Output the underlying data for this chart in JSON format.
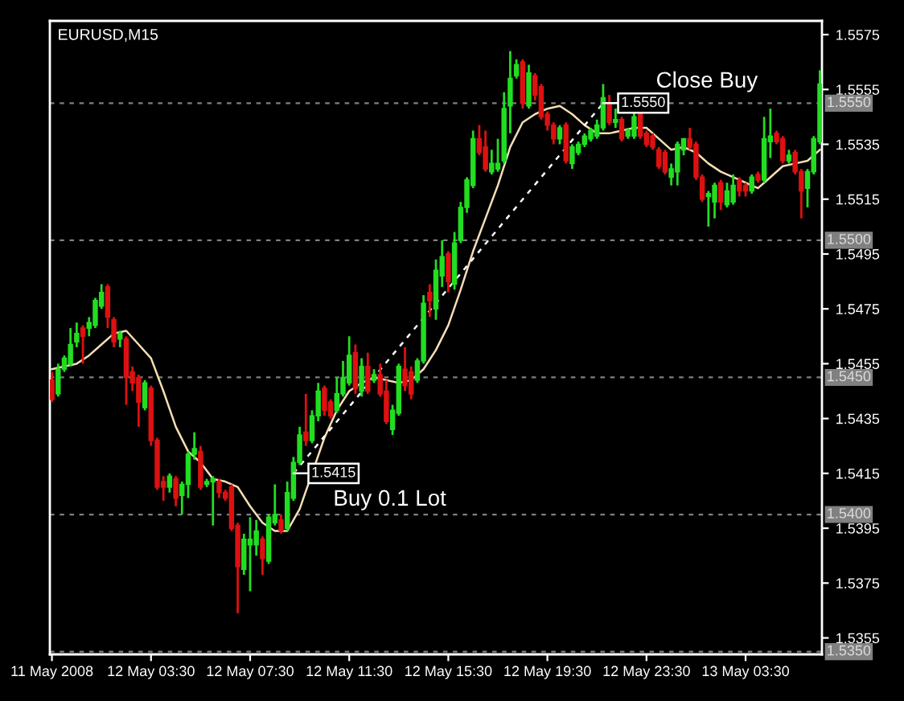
{
  "chart_data": {
    "type": "candlestick",
    "title": "EURUSD,M15",
    "x": [
      "2008-05-11T23:30",
      "2008-05-11T23:45",
      "2008-05-12T00:00",
      "2008-05-12T00:15",
      "2008-05-12T00:30",
      "2008-05-12T00:45",
      "2008-05-12T01:00",
      "2008-05-12T01:15",
      "2008-05-12T01:30",
      "2008-05-12T01:45",
      "2008-05-12T02:00",
      "2008-05-12T02:15",
      "2008-05-12T02:30",
      "2008-05-12T02:45",
      "2008-05-12T03:00",
      "2008-05-12T03:15",
      "2008-05-12T03:30",
      "2008-05-12T03:45",
      "2008-05-12T04:00",
      "2008-05-12T04:15",
      "2008-05-12T04:30",
      "2008-05-12T04:45",
      "2008-05-12T05:00",
      "2008-05-12T05:15",
      "2008-05-12T05:30",
      "2008-05-12T05:45",
      "2008-05-12T06:00",
      "2008-05-12T06:15",
      "2008-05-12T06:30",
      "2008-05-12T06:45",
      "2008-05-12T07:00",
      "2008-05-12T07:15",
      "2008-05-12T07:30",
      "2008-05-12T07:45",
      "2008-05-12T08:00",
      "2008-05-12T08:15",
      "2008-05-12T08:30",
      "2008-05-12T08:45",
      "2008-05-12T09:00",
      "2008-05-12T09:15",
      "2008-05-12T09:30",
      "2008-05-12T09:45",
      "2008-05-12T10:00",
      "2008-05-12T10:15",
      "2008-05-12T10:30",
      "2008-05-12T10:45",
      "2008-05-12T11:00",
      "2008-05-12T11:15",
      "2008-05-12T11:30",
      "2008-05-12T11:45",
      "2008-05-12T12:00",
      "2008-05-12T12:15",
      "2008-05-12T12:30",
      "2008-05-12T12:45",
      "2008-05-12T13:00",
      "2008-05-12T13:15",
      "2008-05-12T13:30",
      "2008-05-12T13:45",
      "2008-05-12T14:00",
      "2008-05-12T14:15",
      "2008-05-12T14:30",
      "2008-05-12T14:45",
      "2008-05-12T15:00",
      "2008-05-12T15:15",
      "2008-05-12T15:30",
      "2008-05-12T15:45",
      "2008-05-12T16:00",
      "2008-05-12T16:15",
      "2008-05-12T16:30",
      "2008-05-12T16:45",
      "2008-05-12T17:00",
      "2008-05-12T17:15",
      "2008-05-12T17:30",
      "2008-05-12T17:45",
      "2008-05-12T18:00",
      "2008-05-12T18:15",
      "2008-05-12T18:30",
      "2008-05-12T18:45",
      "2008-05-12T19:00",
      "2008-05-12T19:15",
      "2008-05-12T19:30",
      "2008-05-12T19:45",
      "2008-05-12T20:00",
      "2008-05-12T20:15",
      "2008-05-12T20:30",
      "2008-05-12T20:45",
      "2008-05-12T21:00",
      "2008-05-12T21:15",
      "2008-05-12T21:30",
      "2008-05-12T21:45",
      "2008-05-12T22:00",
      "2008-05-12T22:15",
      "2008-05-12T22:30",
      "2008-05-12T22:45",
      "2008-05-12T23:00",
      "2008-05-12T23:15",
      "2008-05-12T23:30",
      "2008-05-12T23:45",
      "2008-05-13T00:00",
      "2008-05-13T00:15",
      "2008-05-13T00:30",
      "2008-05-13T00:45",
      "2008-05-13T01:00",
      "2008-05-13T01:15",
      "2008-05-13T01:30",
      "2008-05-13T01:45",
      "2008-05-13T02:00",
      "2008-05-13T02:15",
      "2008-05-13T02:30",
      "2008-05-13T02:45",
      "2008-05-13T03:00",
      "2008-05-13T03:15",
      "2008-05-13T03:30",
      "2008-05-13T03:45",
      "2008-05-13T04:00",
      "2008-05-13T04:15",
      "2008-05-13T04:30",
      "2008-05-13T04:45",
      "2008-05-13T05:00",
      "2008-05-13T05:15",
      "2008-05-13T05:30",
      "2008-05-13T05:45",
      "2008-05-13T06:00",
      "2008-05-13T06:15",
      "2008-05-13T06:30"
    ],
    "ohlc": [
      [
        1.5449,
        1.5452,
        1.5441,
        1.5442
      ],
      [
        1.5444,
        1.5455,
        1.5443,
        1.5453
      ],
      [
        1.5453,
        1.5458,
        1.5452,
        1.5457
      ],
      [
        1.5455,
        1.5468,
        1.5454,
        1.5462
      ],
      [
        1.5463,
        1.547,
        1.5461,
        1.5466
      ],
      [
        1.5468,
        1.5469,
        1.5455,
        1.5465
      ],
      [
        1.5468,
        1.5472,
        1.5465,
        1.547
      ],
      [
        1.5469,
        1.5479,
        1.5468,
        1.5478
      ],
      [
        1.5476,
        1.5484,
        1.5475,
        1.5481
      ],
      [
        1.5483,
        1.5484,
        1.5468,
        1.5472
      ],
      [
        1.5471,
        1.5472,
        1.5461,
        1.5463
      ],
      [
        1.5464,
        1.5467,
        1.5461,
        1.5466
      ],
      [
        1.5464,
        1.5465,
        1.544,
        1.545
      ],
      [
        1.5452,
        1.5454,
        1.5445,
        1.5448
      ],
      [
        1.545,
        1.5451,
        1.5432,
        1.5441
      ],
      [
        1.5439,
        1.5449,
        1.5438,
        1.5448
      ],
      [
        1.5446,
        1.5447,
        1.5425,
        1.5427
      ],
      [
        1.5427,
        1.5428,
        1.5409,
        1.541
      ],
      [
        1.5412,
        1.5414,
        1.5405,
        1.541
      ],
      [
        1.541,
        1.5415,
        1.5408,
        1.5414
      ],
      [
        1.5413,
        1.5414,
        1.5403,
        1.5406
      ],
      [
        1.5407,
        1.5412,
        1.54,
        1.5411
      ],
      [
        1.5411,
        1.5423,
        1.5406,
        1.5422
      ],
      [
        1.5422,
        1.543,
        1.542,
        1.5424
      ],
      [
        1.5423,
        1.5425,
        1.5409,
        1.541
      ],
      [
        1.5411,
        1.5413,
        1.541,
        1.5412
      ],
      [
        1.5412,
        1.5414,
        1.5396,
        1.5413
      ],
      [
        1.5412,
        1.5413,
        1.5406,
        1.5408
      ],
      [
        1.5408,
        1.5409,
        1.5405,
        1.5406
      ],
      [
        1.541,
        1.5411,
        1.5394,
        1.5395
      ],
      [
        1.5396,
        1.5397,
        1.5364,
        1.5381
      ],
      [
        1.538,
        1.5393,
        1.5378,
        1.5391
      ],
      [
        1.5389,
        1.5399,
        1.5372,
        1.5391
      ],
      [
        1.5389,
        1.5398,
        1.5385,
        1.5394
      ],
      [
        1.5391,
        1.5392,
        1.5378,
        1.5384
      ],
      [
        1.5383,
        1.54,
        1.5382,
        1.5399
      ],
      [
        1.5397,
        1.5411,
        1.5396,
        1.54
      ],
      [
        1.5398,
        1.54,
        1.5393,
        1.5394
      ],
      [
        1.5395,
        1.5412,
        1.5394,
        1.5408
      ],
      [
        1.5406,
        1.5421,
        1.5405,
        1.5419
      ],
      [
        1.5419,
        1.5432,
        1.5418,
        1.5429
      ],
      [
        1.543,
        1.5444,
        1.5425,
        1.5427
      ],
      [
        1.5427,
        1.5438,
        1.5426,
        1.5436
      ],
      [
        1.5436,
        1.5448,
        1.5434,
        1.5445
      ],
      [
        1.5446,
        1.5447,
        1.5436,
        1.5438
      ],
      [
        1.5441,
        1.5442,
        1.5435,
        1.5436
      ],
      [
        1.5438,
        1.545,
        1.5437,
        1.5444
      ],
      [
        1.5444,
        1.5456,
        1.5443,
        1.545
      ],
      [
        1.5448,
        1.5465,
        1.5447,
        1.5458
      ],
      [
        1.5459,
        1.5462,
        1.5444,
        1.5446
      ],
      [
        1.5445,
        1.5457,
        1.5443,
        1.5454
      ],
      [
        1.5454,
        1.5459,
        1.5444,
        1.5445
      ],
      [
        1.5449,
        1.5453,
        1.5448,
        1.5451
      ],
      [
        1.5451,
        1.5455,
        1.5443,
        1.5444
      ],
      [
        1.5445,
        1.5449,
        1.5433,
        1.5434
      ],
      [
        1.5431,
        1.544,
        1.5429,
        1.5438
      ],
      [
        1.5437,
        1.5455,
        1.5436,
        1.5454
      ],
      [
        1.5453,
        1.5461,
        1.5445,
        1.5447
      ],
      [
        1.5452,
        1.5454,
        1.5442,
        1.5444
      ],
      [
        1.5449,
        1.5457,
        1.5448,
        1.5456
      ],
      [
        1.5456,
        1.548,
        1.5455,
        1.5477
      ],
      [
        1.5481,
        1.5484,
        1.5472,
        1.5478
      ],
      [
        1.5475,
        1.5493,
        1.5471,
        1.5489
      ],
      [
        1.5487,
        1.55,
        1.5483,
        1.5494
      ],
      [
        1.5495,
        1.5496,
        1.5481,
        1.5485
      ],
      [
        1.5484,
        1.5503,
        1.5482,
        1.5499
      ],
      [
        1.55,
        1.5514,
        1.5499,
        1.5512
      ],
      [
        1.5512,
        1.5523,
        1.551,
        1.5522
      ],
      [
        1.552,
        1.554,
        1.5519,
        1.5537
      ],
      [
        1.5537,
        1.5542,
        1.5531,
        1.5532
      ],
      [
        1.5534,
        1.554,
        1.5525,
        1.5526
      ],
      [
        1.5525,
        1.5533,
        1.5524,
        1.5528
      ],
      [
        1.5526,
        1.5537,
        1.5525,
        1.5528
      ],
      [
        1.5529,
        1.5554,
        1.5528,
        1.5548
      ],
      [
        1.5549,
        1.5569,
        1.5539,
        1.5559
      ],
      [
        1.556,
        1.5566,
        1.5559,
        1.5564
      ],
      [
        1.5565,
        1.5566,
        1.5548,
        1.555
      ],
      [
        1.5549,
        1.5564,
        1.5548,
        1.5561
      ],
      [
        1.556,
        1.5561,
        1.5551,
        1.5553
      ],
      [
        1.5556,
        1.5557,
        1.5544,
        1.5545
      ],
      [
        1.5546,
        1.5547,
        1.554,
        1.5542
      ],
      [
        1.5542,
        1.5543,
        1.5535,
        1.5537
      ],
      [
        1.5537,
        1.5542,
        1.5535,
        1.5541
      ],
      [
        1.5542,
        1.5543,
        1.5528,
        1.5529
      ],
      [
        1.5528,
        1.5535,
        1.5526,
        1.5534
      ],
      [
        1.5532,
        1.5536,
        1.5531,
        1.5535
      ],
      [
        1.5535,
        1.5539,
        1.5534,
        1.5538
      ],
      [
        1.5537,
        1.5541,
        1.5536,
        1.554
      ],
      [
        1.5538,
        1.5544,
        1.5537,
        1.5542
      ],
      [
        1.5541,
        1.5557,
        1.554,
        1.5552
      ],
      [
        1.555,
        1.5553,
        1.5542,
        1.5543
      ],
      [
        1.5543,
        1.5548,
        1.5541,
        1.5544
      ],
      [
        1.5544,
        1.5545,
        1.5536,
        1.5537
      ],
      [
        1.5538,
        1.5541,
        1.5537,
        1.554
      ],
      [
        1.5538,
        1.5547,
        1.5537,
        1.5545
      ],
      [
        1.5546,
        1.5547,
        1.5537,
        1.5538
      ],
      [
        1.5539,
        1.554,
        1.5534,
        1.5535
      ],
      [
        1.5538,
        1.5539,
        1.5533,
        1.5534
      ],
      [
        1.5533,
        1.5534,
        1.5526,
        1.5527
      ],
      [
        1.5532,
        1.5533,
        1.5524,
        1.5525
      ],
      [
        1.5523,
        1.5528,
        1.552,
        1.5526
      ],
      [
        1.5525,
        1.5536,
        1.552,
        1.5535
      ],
      [
        1.5533,
        1.5537,
        1.5531,
        1.5537
      ],
      [
        1.5537,
        1.5541,
        1.5533,
        1.5534
      ],
      [
        1.5535,
        1.5536,
        1.5522,
        1.5523
      ],
      [
        1.5523,
        1.5524,
        1.5514,
        1.5515
      ],
      [
        1.5516,
        1.5518,
        1.5505,
        1.5517
      ],
      [
        1.5514,
        1.5521,
        1.5508,
        1.552
      ],
      [
        1.5521,
        1.5522,
        1.5511,
        1.5514
      ],
      [
        1.5513,
        1.5521,
        1.5512,
        1.5518
      ],
      [
        1.5514,
        1.5524,
        1.5513,
        1.552
      ],
      [
        1.5522,
        1.5523,
        1.5516,
        1.5518
      ],
      [
        1.552,
        1.5521,
        1.5516,
        1.5518
      ],
      [
        1.5518,
        1.5524,
        1.5517,
        1.5523
      ],
      [
        1.5524,
        1.5525,
        1.5521,
        1.5522
      ],
      [
        1.5522,
        1.5545,
        1.5521,
        1.5537
      ],
      [
        1.5536,
        1.5548,
        1.553,
        1.5538
      ],
      [
        1.5539,
        1.554,
        1.5535,
        1.5536
      ],
      [
        1.5537,
        1.5538,
        1.5528,
        1.5529
      ],
      [
        1.5529,
        1.5533,
        1.5528,
        1.5531
      ],
      [
        1.5532,
        1.5533,
        1.5524,
        1.5525
      ],
      [
        1.5525,
        1.5526,
        1.5508,
        1.5518
      ],
      [
        1.5519,
        1.5526,
        1.5512,
        1.5525
      ],
      [
        1.5525,
        1.5538,
        1.5524,
        1.5537
      ],
      [
        1.5536,
        1.5562,
        1.5535,
        1.5557
      ]
    ],
    "colors": [
      "#dd1111",
      "#22dd22",
      "#22dd22",
      "#22dd22",
      "#22dd22",
      "#dd1111",
      "#22dd22",
      "#22dd22",
      "#22dd22",
      "#dd1111",
      "#dd1111",
      "#22dd22",
      "#dd1111",
      "#dd1111",
      "#dd1111",
      "#22dd22",
      "#dd1111",
      "#dd1111",
      "#dd1111",
      "#22dd22",
      "#dd1111",
      "#22dd22",
      "#22dd22",
      "#22dd22",
      "#dd1111",
      "#22dd22",
      "#22dd22",
      "#dd1111",
      "#dd1111",
      "#dd1111",
      "#dd1111",
      "#22dd22",
      "#22dd22",
      "#22dd22",
      "#dd1111",
      "#22dd22",
      "#22dd22",
      "#dd1111",
      "#22dd22",
      "#22dd22",
      "#22dd22",
      "#dd1111",
      "#22dd22",
      "#22dd22",
      "#dd1111",
      "#dd1111",
      "#22dd22",
      "#22dd22",
      "#22dd22",
      "#dd1111",
      "#22dd22",
      "#dd1111",
      "#22dd22",
      "#dd1111",
      "#dd1111",
      "#22dd22",
      "#22dd22",
      "#dd1111",
      "#dd1111",
      "#22dd22",
      "#22dd22",
      "#dd1111",
      "#22dd22",
      "#22dd22",
      "#dd1111",
      "#22dd22",
      "#22dd22",
      "#22dd22",
      "#22dd22",
      "#dd1111",
      "#dd1111",
      "#22dd22",
      "#22dd22",
      "#22dd22",
      "#22dd22",
      "#22dd22",
      "#dd1111",
      "#22dd22",
      "#dd1111",
      "#dd1111",
      "#dd1111",
      "#dd1111",
      "#22dd22",
      "#dd1111",
      "#22dd22",
      "#22dd22",
      "#22dd22",
      "#22dd22",
      "#22dd22",
      "#22dd22",
      "#dd1111",
      "#22dd22",
      "#dd1111",
      "#22dd22",
      "#22dd22",
      "#dd1111",
      "#dd1111",
      "#dd1111",
      "#dd1111",
      "#dd1111",
      "#22dd22",
      "#22dd22",
      "#22dd22",
      "#dd1111",
      "#dd1111",
      "#dd1111",
      "#22dd22",
      "#22dd22",
      "#dd1111",
      "#22dd22",
      "#22dd22",
      "#dd1111",
      "#dd1111",
      "#22dd22",
      "#dd1111",
      "#22dd22",
      "#22dd22",
      "#dd1111",
      "#dd1111",
      "#22dd22",
      "#dd1111",
      "#dd1111",
      "#22dd22",
      "#22dd22",
      "#22dd22"
    ],
    "series": [
      {
        "type": "line",
        "color": "#f5deb3",
        "x": [
          "2008-05-11T23:30",
          "2008-05-12T00:00",
          "2008-05-12T00:30",
          "2008-05-12T01:00",
          "2008-05-12T01:30",
          "2008-05-12T02:00",
          "2008-05-12T02:30",
          "2008-05-12T03:00",
          "2008-05-12T03:30",
          "2008-05-12T04:00",
          "2008-05-12T04:30",
          "2008-05-12T05:00",
          "2008-05-12T05:30",
          "2008-05-12T06:00",
          "2008-05-12T06:30",
          "2008-05-12T07:00",
          "2008-05-12T07:30",
          "2008-05-12T08:00",
          "2008-05-12T08:30",
          "2008-05-12T09:00",
          "2008-05-12T09:30",
          "2008-05-12T10:00",
          "2008-05-12T10:30",
          "2008-05-12T11:00",
          "2008-05-12T11:30",
          "2008-05-12T12:00",
          "2008-05-12T12:30",
          "2008-05-12T13:00",
          "2008-05-12T13:30",
          "2008-05-12T14:00",
          "2008-05-12T14:30",
          "2008-05-12T15:00",
          "2008-05-12T15:30",
          "2008-05-12T16:00",
          "2008-05-12T16:30",
          "2008-05-12T17:00",
          "2008-05-12T17:30",
          "2008-05-12T18:00",
          "2008-05-12T18:30",
          "2008-05-12T19:00",
          "2008-05-12T19:30",
          "2008-05-12T20:00",
          "2008-05-12T20:30",
          "2008-05-12T21:00",
          "2008-05-12T21:30",
          "2008-05-12T22:00",
          "2008-05-12T22:30",
          "2008-05-12T23:00",
          "2008-05-12T23:30",
          "2008-05-13T00:00",
          "2008-05-13T00:30",
          "2008-05-13T01:00",
          "2008-05-13T01:30",
          "2008-05-13T02:00",
          "2008-05-13T02:30",
          "2008-05-13T03:00",
          "2008-05-13T03:30",
          "2008-05-13T04:00",
          "2008-05-13T04:30",
          "2008-05-13T05:00",
          "2008-05-13T05:30",
          "2008-05-13T06:00",
          "2008-05-13T06:30"
        ],
        "values": [
          1.5453,
          1.5454,
          1.5455,
          1.5458,
          1.5462,
          1.5466,
          1.5467,
          1.5462,
          1.5457,
          1.5445,
          1.5432,
          1.5423,
          1.5419,
          1.5413,
          1.5412,
          1.541,
          1.5403,
          1.5397,
          1.5394,
          1.5394,
          1.5402,
          1.5415,
          1.5428,
          1.5438,
          1.5445,
          1.5448,
          1.545,
          1.5449,
          1.5448,
          1.5449,
          1.5453,
          1.546,
          1.5469,
          1.5482,
          1.5496,
          1.5508,
          1.552,
          1.5534,
          1.5543,
          1.5546,
          1.5548,
          1.5549,
          1.5546,
          1.5542,
          1.5539,
          1.5539,
          1.554,
          1.5541,
          1.5541,
          1.5537,
          1.5533,
          1.5534,
          1.5532,
          1.5528,
          1.5525,
          1.5523,
          1.5521,
          1.5519,
          1.5523,
          1.5527,
          1.5528,
          1.5529,
          1.5533
        ]
      },
      {
        "type": "line",
        "color": "#ffffff",
        "line_style": "dashed",
        "x": [
          "2008-05-12T09:15",
          "2008-05-12T21:45"
        ],
        "values": [
          1.5415,
          1.555
        ],
        "value_labels": [
          "1.5415",
          "1.5550"
        ]
      }
    ],
    "annotations": [
      "Buy 0.1 Lot",
      "Close Buy"
    ],
    "ref_lines": [
      {
        "axis": "y",
        "value": 1.555,
        "label": "1.5550",
        "color": "#808080",
        "line_style": "dashed"
      },
      {
        "axis": "y",
        "value": 1.55,
        "label": "1.5500",
        "color": "#808080",
        "line_style": "dashed"
      },
      {
        "axis": "y",
        "value": 1.545,
        "label": "1.5450",
        "color": "#808080",
        "line_style": "dashed"
      },
      {
        "axis": "y",
        "value": 1.54,
        "label": "1.5400",
        "color": "#808080",
        "line_style": "dashed"
      },
      {
        "axis": "y",
        "value": 1.535,
        "label": "1.5350",
        "color": "#808080",
        "line_style": "dashed"
      }
    ],
    "xlim": [
      "2008-05-11T23:25",
      "2008-05-13T06:35"
    ],
    "xticks": [
      {
        "value": "2008-05-11T23:30",
        "label": "11 May 2008"
      },
      {
        "value": "2008-05-12T03:30",
        "label": "12 May 03:30"
      },
      {
        "value": "2008-05-12T07:30",
        "label": "12 May 07:30"
      },
      {
        "value": "2008-05-12T11:30",
        "label": "12 May 11:30"
      },
      {
        "value": "2008-05-12T15:30",
        "label": "12 May 15:30"
      },
      {
        "value": "2008-05-12T19:30",
        "label": "12 May 19:30"
      },
      {
        "value": "2008-05-12T23:30",
        "label": "12 May 23:30"
      },
      {
        "value": "2008-05-13T03:30",
        "label": "13 May 03:30"
      }
    ],
    "ylim": [
      1.5349,
      1.558
    ],
    "yticks": [
      1.5575,
      1.5555,
      1.5535,
      1.5515,
      1.5495,
      1.5475,
      1.5455,
      1.5435,
      1.5415,
      1.5395,
      1.5375,
      1.5355
    ]
  }
}
